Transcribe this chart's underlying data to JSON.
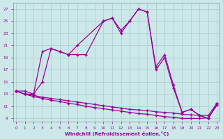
{
  "bg_color": "#cce8e8",
  "line_color": "#990099",
  "xlim": [
    -0.3,
    23.3
  ],
  "ylim": [
    8.5,
    28
  ],
  "yticks": [
    9,
    11,
    13,
    15,
    17,
    19,
    21,
    23,
    25,
    27
  ],
  "xticks": [
    0,
    1,
    2,
    3,
    4,
    5,
    6,
    7,
    8,
    9,
    10,
    11,
    12,
    13,
    14,
    15,
    16,
    17,
    18,
    19,
    20,
    21,
    22,
    23
  ],
  "xlabel": "Windchill (Refroidissement éolien,°C)",
  "marker": "+",
  "curve1_x": [
    0,
    1,
    2,
    3,
    4,
    5,
    6,
    7,
    8,
    10,
    11,
    12,
    13,
    14,
    15,
    16,
    17,
    18,
    19,
    20,
    21,
    22,
    23
  ],
  "curve1_y": [
    13.5,
    13.5,
    13.0,
    20.0,
    20.5,
    20.0,
    19.5,
    19.5,
    19.5,
    25.0,
    25.5,
    23.0,
    25.0,
    27.0,
    26.5,
    17.5,
    19.5,
    14.5,
    10.0,
    10.5,
    9.5,
    9.0,
    11.5
  ],
  "curve2_x": [
    0,
    1,
    2,
    3,
    4,
    5,
    6,
    7,
    10,
    11,
    12,
    13,
    14,
    15,
    16,
    17,
    18,
    19,
    20,
    21,
    22,
    23
  ],
  "curve2_y": [
    13.5,
    13.0,
    13.0,
    15.0,
    20.5,
    20.0,
    19.5,
    21.0,
    25.0,
    25.5,
    23.5,
    25.0,
    27.0,
    26.5,
    17.0,
    19.0,
    14.0,
    10.0,
    10.5,
    9.5,
    9.0,
    11.5
  ],
  "curve3_x": [
    0,
    1,
    2,
    3,
    4,
    5,
    6,
    7,
    8,
    9,
    10,
    11,
    12,
    13,
    14,
    15,
    16,
    17,
    18,
    19,
    20,
    21,
    22,
    23
  ],
  "curve3_y": [
    13.5,
    13.0,
    12.8,
    12.5,
    12.3,
    12.1,
    11.9,
    11.7,
    11.5,
    11.3,
    11.1,
    10.9,
    10.7,
    10.5,
    10.4,
    10.3,
    10.1,
    10.0,
    9.9,
    9.7,
    9.6,
    9.5,
    9.5,
    11.5
  ],
  "curve4_x": [
    0,
    1,
    2,
    3,
    4,
    5,
    6,
    7,
    8,
    9,
    10,
    11,
    12,
    13,
    14,
    15,
    16,
    17,
    18,
    19,
    20,
    21,
    22,
    23
  ],
  "curve4_y": [
    13.5,
    13.0,
    12.6,
    12.3,
    12.0,
    11.8,
    11.5,
    11.3,
    11.0,
    10.8,
    10.6,
    10.4,
    10.2,
    10.0,
    9.8,
    9.7,
    9.5,
    9.3,
    9.2,
    9.0,
    9.0,
    9.0,
    9.1,
    11.2
  ]
}
